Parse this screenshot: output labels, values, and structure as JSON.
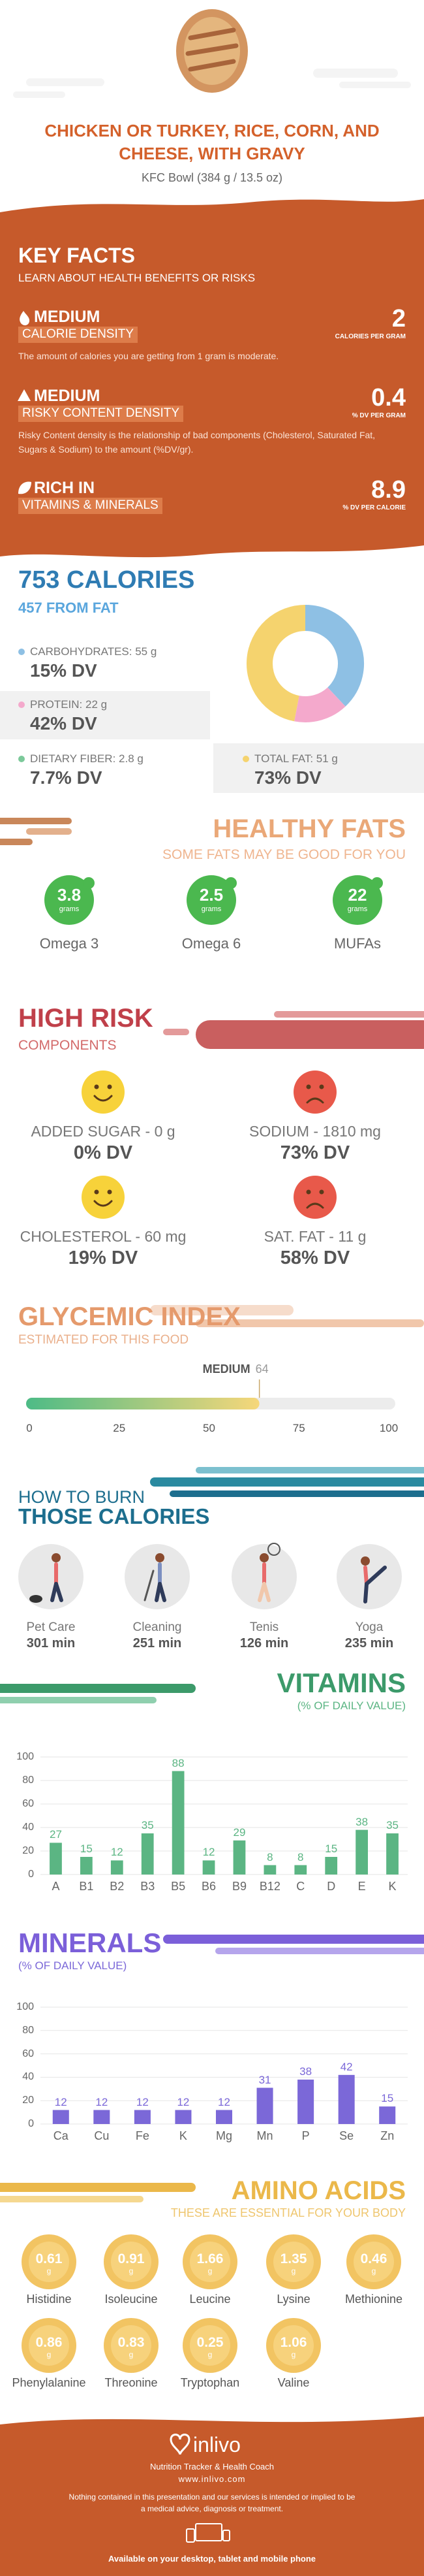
{
  "header": {
    "title": "CHICKEN OR TURKEY, RICE, CORN, AND CHEESE, WITH GRAVY",
    "subtitle": "KFC Bowl (384 g / 13.5 oz)"
  },
  "key_facts": {
    "title": "KEY FACTS",
    "subtitle": "LEARN ABOUT HEALTH BENEFITS OR RISKS",
    "items": [
      {
        "level": "MEDIUM",
        "name": "CALORIE DENSITY",
        "value": 2,
        "unit": "CALORIES PER GRAM",
        "description": "The amount of calories you are getting from 1 gram is moderate."
      },
      {
        "level": "MEDIUM",
        "name": "RISKY CONTENT DENSITY",
        "value": 0.4,
        "unit": "% DV PER GRAM",
        "description": "Risky Content density is the relationship of bad components (Cholesterol, Saturated Fat, Sugars & Sodium) to the amount (%DV/gr)."
      },
      {
        "level": "RICH IN",
        "name": "VITAMINS & MINERALS",
        "value": 8.9,
        "unit": "% DV PER CALORIE"
      }
    ]
  },
  "calories": {
    "title": "753 CALORIES",
    "from_fat": "457 FROM FAT",
    "macros": [
      {
        "label": "CARBOHYDRATES: 55 g",
        "dv": "15% DV",
        "color": "#8ec0e4"
      },
      {
        "label": "PROTEIN: 22 g",
        "dv": "42% DV",
        "color": "#f4a9cc"
      },
      {
        "label": "DIETARY FIBER: 2.8 g",
        "dv": "7.7% DV",
        "color": "#7cc99a"
      },
      {
        "label": "TOTAL FAT: 51 g",
        "dv": "73% DV",
        "color": "#f5d36e"
      }
    ],
    "donut": {
      "values": [
        38,
        15,
        47
      ],
      "colors": [
        "#8ec0e4",
        "#f4a9cc",
        "#f5d36e"
      ]
    }
  },
  "healthy_fats": {
    "title": "HEALTHY FATS",
    "subtitle": "SOME FATS MAY BE GOOD FOR YOU",
    "items": [
      {
        "value": 3.8,
        "unit": "grams",
        "name": "Omega 3"
      },
      {
        "value": 2.5,
        "unit": "grams",
        "name": "Omega 6"
      },
      {
        "value": 22,
        "unit": "grams",
        "name": "MUFAs"
      }
    ]
  },
  "high_risk": {
    "title": "HIGH RISK",
    "subtitle": "COMPONENTS",
    "items": [
      {
        "label": "ADDED SUGAR - 0 g",
        "dv": "0% DV",
        "face": "happy"
      },
      {
        "label": "SODIUM - 1810 mg",
        "dv": "73% DV",
        "face": "sad"
      },
      {
        "label": "CHOLESTEROL - 60 mg",
        "dv": "19% DV",
        "face": "happy"
      },
      {
        "label": "SAT. FAT - 11 g",
        "dv": "58% DV",
        "face": "sad"
      }
    ]
  },
  "glycemic": {
    "title": "GLYCEMIC INDEX",
    "subtitle": "ESTIMATED FOR THIS FOOD",
    "level": "MEDIUM",
    "value": 64,
    "xlim": [
      0,
      100
    ],
    "xticks": [
      0,
      25,
      50,
      75,
      100
    ]
  },
  "burn": {
    "title": "HOW TO BURN",
    "subtitle": "THOSE CALORIES",
    "activities": [
      {
        "name": "Pet Care",
        "time": "301 min"
      },
      {
        "name": "Cleaning",
        "time": "251 min"
      },
      {
        "name": "Tenis",
        "time": "126 min"
      },
      {
        "name": "Yoga",
        "time": "235 min"
      }
    ]
  },
  "chart_data": [
    {
      "type": "bar",
      "title": "VITAMINS",
      "subtitle": "(% OF DAILY VALUE)",
      "categories": [
        "A",
        "B1",
        "B2",
        "B3",
        "B5",
        "B6",
        "B9",
        "B12",
        "C",
        "D",
        "E",
        "K"
      ],
      "values": [
        27,
        15,
        12,
        35,
        88,
        12,
        29,
        8,
        8,
        15,
        38,
        35
      ],
      "color": "#5bb583",
      "ylim": [
        0,
        100
      ],
      "yticks": [
        0,
        20,
        40,
        60,
        80,
        100
      ],
      "grid": true
    },
    {
      "type": "bar",
      "title": "MINERALS",
      "subtitle": "(% OF DAILY VALUE)",
      "categories": [
        "Ca",
        "Cu",
        "Fe",
        "K",
        "Mg",
        "Mn",
        "P",
        "Se",
        "Zn"
      ],
      "values": [
        12,
        12,
        12,
        12,
        12,
        31,
        38,
        42,
        15
      ],
      "color": "#7b68d8",
      "ylim": [
        0,
        100
      ],
      "yticks": [
        0,
        20,
        40,
        60,
        80,
        100
      ],
      "grid": true
    }
  ],
  "amino_acids": {
    "title": "AMINO ACIDS",
    "subtitle": "THESE ARE ESSENTIAL FOR YOUR BODY",
    "unit": "g",
    "items": [
      {
        "name": "Histidine",
        "value": 0.61
      },
      {
        "name": "Isoleucine",
        "value": 0.91
      },
      {
        "name": "Leucine",
        "value": 1.66
      },
      {
        "name": "Lysine",
        "value": 1.35
      },
      {
        "name": "Methionine",
        "value": 0.46
      },
      {
        "name": "Phenylalanine",
        "value": 0.86
      },
      {
        "name": "Threonine",
        "value": 0.83
      },
      {
        "name": "Tryptophan",
        "value": 0.25
      },
      {
        "name": "Valine",
        "value": 1.06
      }
    ]
  },
  "footer": {
    "brand": "inlivo",
    "tagline": "Nutrition Tracker & Health Coach",
    "url": "www.inlivo.com",
    "disclaimer": "Nothing contained in this presentation and our services is intended or implied to be a medical advice, diagnosis or treatment.",
    "availability": "Available on your desktop, tablet and mobile phone"
  }
}
